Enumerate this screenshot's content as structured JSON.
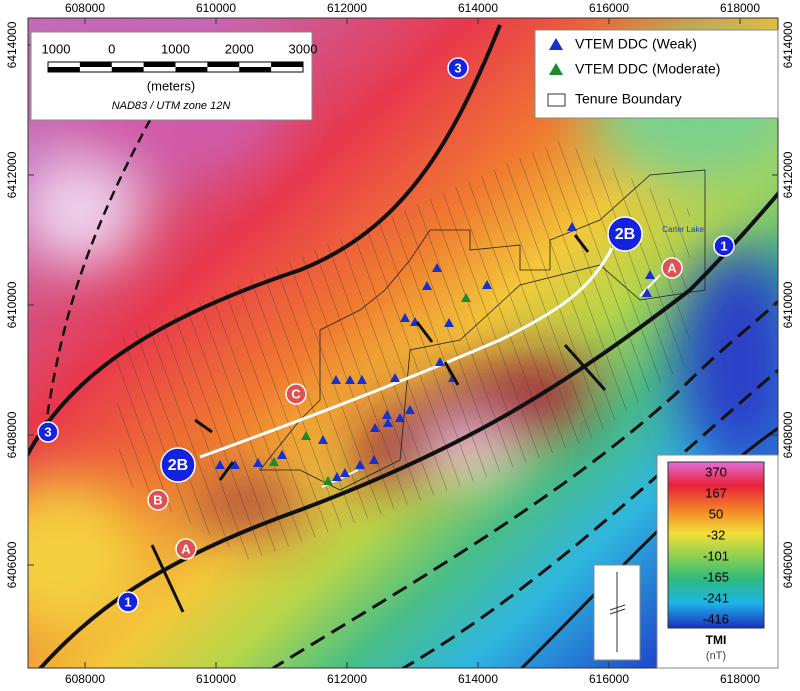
{
  "map": {
    "xlim": [
      607130,
      618580
    ],
    "ylim": [
      6404415,
      6414415
    ],
    "x_ticks": [
      608000,
      610000,
      612000,
      614000,
      616000,
      618000
    ],
    "y_ticks": [
      6406000,
      6408000,
      6410000,
      6412000,
      6414000
    ]
  },
  "scale_bar": {
    "labels": [
      "1000",
      "0",
      "1000",
      "2000",
      "3000"
    ],
    "unit": "(meters)",
    "projection": "NAD83 / UTM zone 12N"
  },
  "legend": {
    "items": [
      "VTEM DDC (Weak)",
      "VTEM DDC (Moderate)",
      "Tenure Boundary"
    ]
  },
  "markers": [
    "3",
    "3",
    "1",
    "1",
    "2B",
    "2B",
    "A",
    "A",
    "B",
    "C"
  ],
  "place_label": "Carter Lake",
  "colorbar": {
    "ticks": [
      370,
      167,
      50,
      -32,
      -101,
      -165,
      -241,
      -416
    ],
    "title": "TMI",
    "unit": "(nT)"
  }
}
